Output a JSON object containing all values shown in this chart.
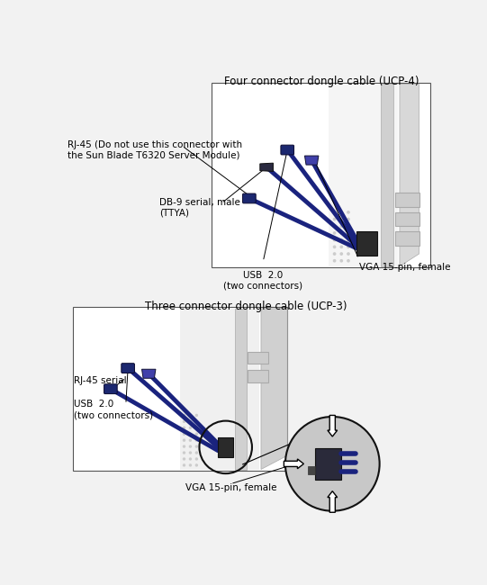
{
  "bg_color": "#f2f2f2",
  "box_bg": "#ffffff",
  "box_edge": "#555555",
  "title1": "Four connector dongle cable (UCP-4)",
  "title2": "Three connector dongle cable (UCP-3)",
  "label_rj45_top": "RJ-45 (Do not use this connector with\nthe Sun Blade T6320 Server Module)",
  "label_db9": "DB-9 serial, male\n(TTYA)",
  "label_usb_top": "USB  2.0\n(two connectors)",
  "label_vga_top": "VGA 15-pin, female",
  "label_rj45_bot": "RJ-45 serial",
  "label_usb_bot": "USB  2.0\n(two connectors)",
  "label_vga_bot": "VGA 15-pin, female",
  "cable_color": "#1a237e",
  "connector_dark": "#2a2a2a",
  "server_dot": "#bbbbbb",
  "circle_color": "#111111",
  "arrow_fill": "#ffffff",
  "font_size_title": 8.5,
  "font_size_label": 7.5,
  "lw_ann": 0.7
}
